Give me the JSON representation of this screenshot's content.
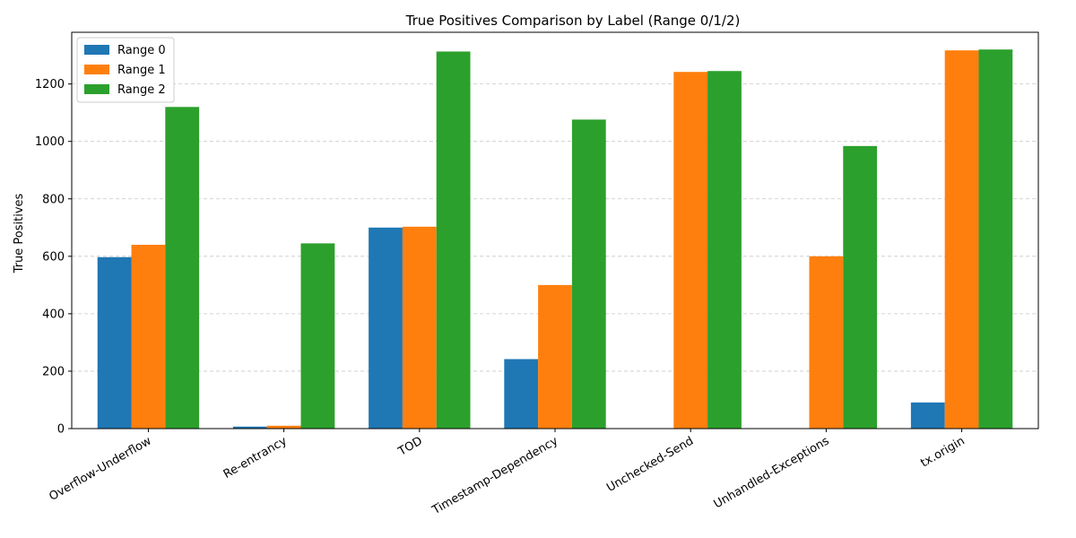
{
  "chart_data": {
    "type": "bar",
    "title": "True Positives Comparison by Label (Range 0/1/2)",
    "xlabel": "",
    "ylabel": "True Positives",
    "ylim": [
      0,
      1380
    ],
    "yticks": [
      0,
      200,
      400,
      600,
      800,
      1000,
      1200
    ],
    "grid": "y-dashed",
    "legend_position": "top-left",
    "categories": [
      "Overflow-Underflow",
      "Re-entrancy",
      "TOD",
      "Timestamp-Dependency",
      "Unchecked-Send",
      "Unhandled-Exceptions",
      "tx.origin"
    ],
    "series": [
      {
        "name": "Range 0",
        "color": "#1f77b4",
        "values": [
          597,
          7,
          700,
          242,
          0,
          0,
          91
        ]
      },
      {
        "name": "Range 1",
        "color": "#ff7f0e",
        "values": [
          640,
          10,
          703,
          500,
          1242,
          600,
          1317
        ]
      },
      {
        "name": "Range 2",
        "color": "#2ca02c",
        "values": [
          1120,
          645,
          1313,
          1076,
          1245,
          984,
          1320
        ]
      }
    ]
  }
}
